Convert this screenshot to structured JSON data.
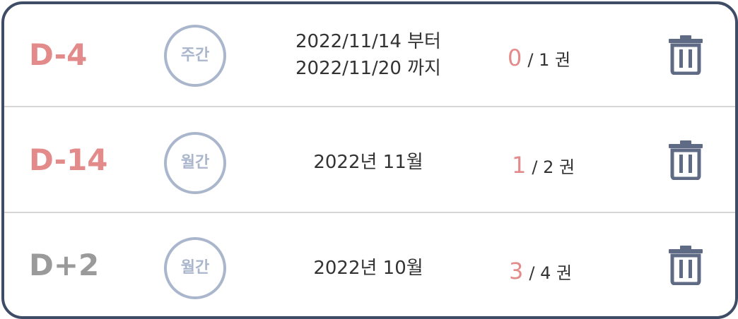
{
  "goals": [
    {
      "dday": "D-4",
      "status": "past",
      "period_type": "주간",
      "period_lines": [
        "2022/11/14 부터",
        "2022/11/20 까지"
      ],
      "read_count": "0",
      "total_label": "/ 1 권",
      "delete_icon": "trash-icon"
    },
    {
      "dday": "D-14",
      "status": "past",
      "period_type": "월간",
      "period_lines": [
        "2022년 11월"
      ],
      "read_count": "1",
      "total_label": "/ 2 권",
      "delete_icon": "trash-icon"
    },
    {
      "dday": "D+2",
      "status": "future",
      "period_type": "월간",
      "period_lines": [
        "2022년 10월"
      ],
      "read_count": "3",
      "total_label": "/ 4 권",
      "delete_icon": "trash-icon"
    }
  ],
  "colors": {
    "border": "#3e4c66",
    "past_dday": "#e38a8a",
    "future_dday": "#9a9a9a",
    "badge": "#aab6cc",
    "count_highlight": "#e38a8a",
    "trash": "#5f6b85",
    "divider": "#d6d6d6"
  }
}
